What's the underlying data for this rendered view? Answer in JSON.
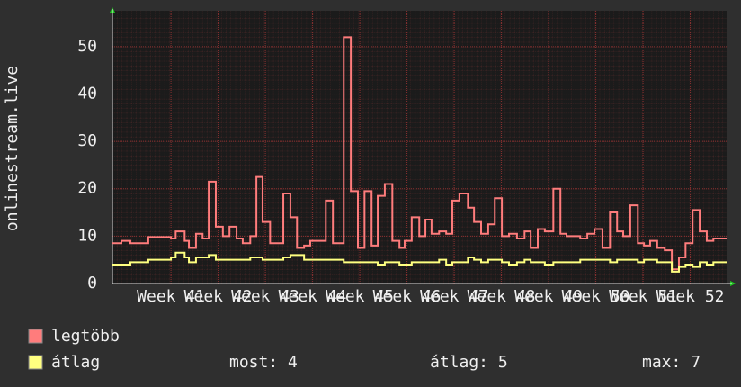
{
  "chart_data": {
    "type": "line",
    "step": true,
    "y_label": "onlinestream.live",
    "x": [
      -1.24,
      -1.05,
      -0.86,
      -0.48,
      0,
      0.1,
      0.29,
      0.38,
      0.53,
      0.67,
      0.8,
      0.95,
      1.1,
      1.24,
      1.39,
      1.52,
      1.68,
      1.81,
      1.94,
      2.1,
      2.38,
      2.53,
      2.67,
      2.82,
      2.95,
      3.28,
      3.43,
      3.66,
      3.81,
      3.96,
      4.1,
      4.25,
      4.38,
      4.53,
      4.69,
      4.84,
      4.95,
      5.1,
      5.26,
      5.39,
      5.52,
      5.68,
      5.83,
      5.96,
      6.11,
      6.29,
      6.42,
      6.57,
      6.72,
      6.86,
      7.01,
      7.16,
      7.33,
      7.49,
      7.62,
      7.77,
      7.92,
      8.1,
      8.25,
      8.38,
      8.67,
      8.82,
      8.97,
      9.14,
      9.3,
      9.45,
      9.58,
      9.73,
      9.89,
      10.02,
      10.15,
      10.3,
      10.46,
      10.61,
      10.76,
      10.9,
      11.05,
      11.2,
      11.35,
      11.49,
      11.64
    ],
    "series": [
      {
        "name": "legtöbb",
        "color": "#ff7c7c",
        "values": [
          8.5,
          9,
          8.5,
          9.8,
          9.5,
          11,
          9,
          7.5,
          10.5,
          9.5,
          21.5,
          12,
          10,
          12,
          9.5,
          8.5,
          10,
          22.5,
          13,
          8.5,
          19,
          14,
          7.5,
          8,
          9,
          17.5,
          8.5,
          52,
          19.5,
          7.5,
          19.5,
          8,
          18.5,
          21,
          9,
          7.5,
          9,
          14,
          10,
          13.5,
          10.5,
          11,
          10.5,
          17.5,
          19,
          16,
          13,
          10.5,
          12.5,
          18,
          10,
          10.5,
          9.5,
          11,
          7.5,
          11.5,
          11,
          20,
          10.5,
          10,
          9.5,
          10.5,
          11.5,
          7.5,
          15,
          11,
          10,
          16.5,
          8.5,
          8,
          9,
          7.5,
          7,
          3,
          5.5,
          8.5,
          15.5,
          11,
          9,
          9.5,
          9.5
        ]
      },
      {
        "name": "átlag",
        "color": "#ffff80",
        "values": [
          4,
          4,
          4.5,
          5,
          5.5,
          6.5,
          5.5,
          4.5,
          5.5,
          5.5,
          6,
          5,
          5,
          5,
          5,
          5,
          5.5,
          5.5,
          5,
          5,
          5.5,
          6,
          6,
          5,
          5,
          5,
          5,
          4.5,
          4.5,
          4.5,
          4.5,
          4.5,
          4,
          4.5,
          4.5,
          4,
          4,
          4.5,
          4.5,
          4.5,
          4.5,
          5,
          4,
          4.5,
          4.5,
          5.5,
          5,
          4.5,
          5,
          5,
          4.5,
          4,
          4.5,
          5,
          4.5,
          4.5,
          4,
          4.5,
          4.5,
          4.5,
          5,
          5,
          5,
          5,
          4.5,
          5,
          5,
          5,
          4.5,
          5,
          5,
          4.5,
          4.5,
          2.5,
          3.5,
          4,
          3.5,
          4.5,
          4,
          4.5,
          4.5
        ],
        "stats": [
          {
            "label": "most:",
            "value": 4
          },
          {
            "label": "átlag:",
            "value": 5
          },
          {
            "label": "max:",
            "value": 7
          }
        ]
      }
    ],
    "xlim": [
      -1.24,
      11.77
    ],
    "xticks": [
      {
        "value": 0,
        "label": "Week 41"
      },
      {
        "value": 1,
        "label": "Week 42"
      },
      {
        "value": 2,
        "label": "Week 43"
      },
      {
        "value": 3,
        "label": "Week 44"
      },
      {
        "value": 4,
        "label": "Week 45"
      },
      {
        "value": 5,
        "label": "Week 46"
      },
      {
        "value": 6,
        "label": "Week 47"
      },
      {
        "value": 7,
        "label": "Week 48"
      },
      {
        "value": 8,
        "label": "Week 49"
      },
      {
        "value": 9,
        "label": "Week 50"
      },
      {
        "value": 10,
        "label": "Week 51"
      },
      {
        "value": 11,
        "label": "Week 52"
      }
    ],
    "ylim": [
      0,
      57
    ],
    "yticks": [
      0,
      10,
      20,
      30,
      40,
      50
    ],
    "grid": true
  }
}
